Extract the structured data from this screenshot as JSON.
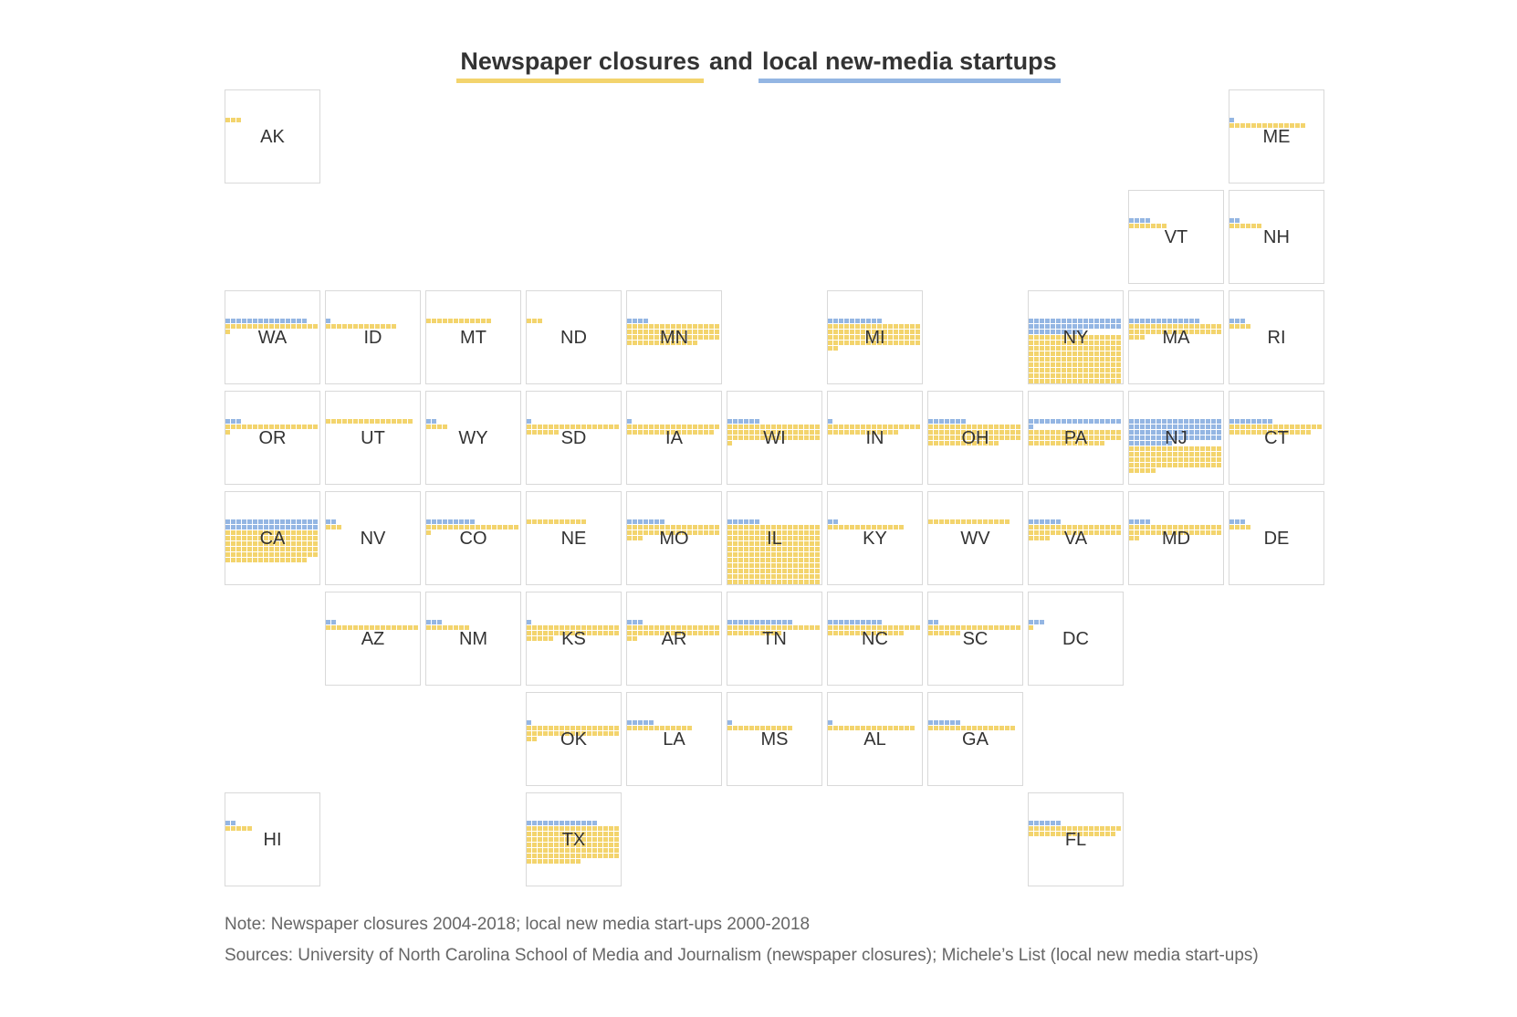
{
  "title": {
    "closures_label": "Newspaper closures",
    "and_label": "and",
    "startups_label": "local new-media startups"
  },
  "colors": {
    "closures": "#f3d46d",
    "startups": "#94b6e3",
    "tile_border": "#d9d9d9"
  },
  "note": "Note: Newspaper closures 2004-2018; local new media start-ups 2000-2018",
  "sources": "Sources: University of North Carolina School of Media and Journalism (newspaper closures); Michele’s List (local new media start-ups)",
  "states": [
    {
      "abbr": "AK",
      "row": 0,
      "col": 0,
      "closures": 3,
      "startups": 0
    },
    {
      "abbr": "ME",
      "row": 0,
      "col": 10,
      "closures": 14,
      "startups": 1
    },
    {
      "abbr": "VT",
      "row": 1,
      "col": 9,
      "closures": 7,
      "startups": 4
    },
    {
      "abbr": "NH",
      "row": 1,
      "col": 10,
      "closures": 6,
      "startups": 2
    },
    {
      "abbr": "WA",
      "row": 2,
      "col": 0,
      "closures": 18,
      "startups": 15
    },
    {
      "abbr": "ID",
      "row": 2,
      "col": 1,
      "closures": 13,
      "startups": 1
    },
    {
      "abbr": "MT",
      "row": 2,
      "col": 2,
      "closures": 12,
      "startups": 0
    },
    {
      "abbr": "ND",
      "row": 2,
      "col": 3,
      "closures": 3,
      "startups": 0
    },
    {
      "abbr": "MN",
      "row": 2,
      "col": 4,
      "closures": 64,
      "startups": 4
    },
    {
      "abbr": "MI",
      "row": 2,
      "col": 6,
      "closures": 70,
      "startups": 10
    },
    {
      "abbr": "NY",
      "row": 2,
      "col": 8,
      "closures": 224,
      "startups": 44
    },
    {
      "abbr": "MA",
      "row": 2,
      "col": 9,
      "closures": 37,
      "startups": 13
    },
    {
      "abbr": "RI",
      "row": 2,
      "col": 10,
      "closures": 4,
      "startups": 3
    },
    {
      "abbr": "OR",
      "row": 3,
      "col": 0,
      "closures": 18,
      "startups": 3
    },
    {
      "abbr": "UT",
      "row": 3,
      "col": 1,
      "closures": 16,
      "startups": 0
    },
    {
      "abbr": "WY",
      "row": 3,
      "col": 2,
      "closures": 4,
      "startups": 2
    },
    {
      "abbr": "SD",
      "row": 3,
      "col": 3,
      "closures": 23,
      "startups": 1
    },
    {
      "abbr": "IA",
      "row": 3,
      "col": 4,
      "closures": 33,
      "startups": 1
    },
    {
      "abbr": "WI",
      "row": 3,
      "col": 5,
      "closures": 52,
      "startups": 6
    },
    {
      "abbr": "IN",
      "row": 3,
      "col": 6,
      "closures": 30,
      "startups": 1
    },
    {
      "abbr": "OH",
      "row": 3,
      "col": 7,
      "closures": 64,
      "startups": 7
    },
    {
      "abbr": "PA",
      "row": 3,
      "col": 8,
      "closures": 48,
      "startups": 18
    },
    {
      "abbr": "NJ",
      "row": 3,
      "col": 9,
      "closures": 73,
      "startups": 76
    },
    {
      "abbr": "CT",
      "row": 3,
      "col": 10,
      "closures": 32,
      "startups": 8
    },
    {
      "abbr": "CA",
      "row": 4,
      "col": 0,
      "closures": 100,
      "startups": 34
    },
    {
      "abbr": "NV",
      "row": 4,
      "col": 1,
      "closures": 3,
      "startups": 2
    },
    {
      "abbr": "CO",
      "row": 4,
      "col": 2,
      "closures": 18,
      "startups": 9
    },
    {
      "abbr": "NE",
      "row": 4,
      "col": 3,
      "closures": 11,
      "startups": 0
    },
    {
      "abbr": "MO",
      "row": 4,
      "col": 4,
      "closures": 37,
      "startups": 7
    },
    {
      "abbr": "IL",
      "row": 4,
      "col": 5,
      "closures": 193,
      "startups": 6
    },
    {
      "abbr": "KY",
      "row": 4,
      "col": 6,
      "closures": 14,
      "startups": 2
    },
    {
      "abbr": "WV",
      "row": 4,
      "col": 7,
      "closures": 15,
      "startups": 0
    },
    {
      "abbr": "VA",
      "row": 4,
      "col": 8,
      "closures": 38,
      "startups": 6
    },
    {
      "abbr": "MD",
      "row": 4,
      "col": 9,
      "closures": 36,
      "startups": 4
    },
    {
      "abbr": "DE",
      "row": 4,
      "col": 10,
      "closures": 4,
      "startups": 3
    },
    {
      "abbr": "AZ",
      "row": 5,
      "col": 1,
      "closures": 17,
      "startups": 2
    },
    {
      "abbr": "NM",
      "row": 5,
      "col": 2,
      "closures": 8,
      "startups": 3
    },
    {
      "abbr": "KS",
      "row": 5,
      "col": 3,
      "closures": 39,
      "startups": 1
    },
    {
      "abbr": "AR",
      "row": 5,
      "col": 4,
      "closures": 36,
      "startups": 3
    },
    {
      "abbr": "TN",
      "row": 5,
      "col": 5,
      "closures": 27,
      "startups": 12
    },
    {
      "abbr": "NC",
      "row": 5,
      "col": 6,
      "closures": 31,
      "startups": 10
    },
    {
      "abbr": "SC",
      "row": 5,
      "col": 7,
      "closures": 23,
      "startups": 2
    },
    {
      "abbr": "DC",
      "row": 5,
      "col": 8,
      "closures": 1,
      "startups": 3
    },
    {
      "abbr": "OK",
      "row": 6,
      "col": 3,
      "closures": 36,
      "startups": 1
    },
    {
      "abbr": "LA",
      "row": 6,
      "col": 4,
      "closures": 12,
      "startups": 5
    },
    {
      "abbr": "MS",
      "row": 6,
      "col": 5,
      "closures": 12,
      "startups": 1
    },
    {
      "abbr": "AL",
      "row": 6,
      "col": 6,
      "closures": 16,
      "startups": 1
    },
    {
      "abbr": "GA",
      "row": 6,
      "col": 7,
      "closures": 16,
      "startups": 6
    },
    {
      "abbr": "HI",
      "row": 7,
      "col": 0,
      "closures": 5,
      "startups": 2
    },
    {
      "abbr": "TX",
      "row": 7,
      "col": 3,
      "closures": 112,
      "startups": 13
    },
    {
      "abbr": "FL",
      "row": 7,
      "col": 8,
      "closures": 33,
      "startups": 6
    }
  ]
}
